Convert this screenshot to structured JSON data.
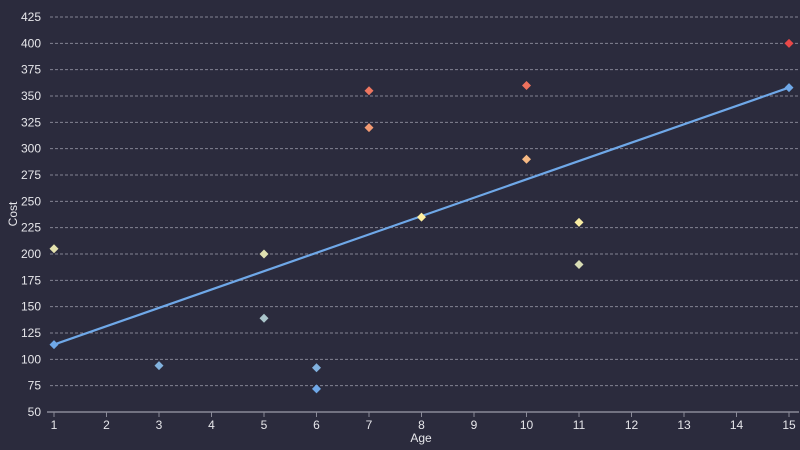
{
  "chart_data": {
    "type": "scatter",
    "title": "",
    "xlabel": "Age",
    "ylabel": "Cost",
    "xlim": [
      1,
      15
    ],
    "ylim": [
      50,
      425
    ],
    "x_ticks": [
      1,
      2,
      3,
      4,
      5,
      6,
      7,
      8,
      9,
      10,
      11,
      12,
      13,
      14,
      15
    ],
    "y_ticks": [
      50,
      75,
      100,
      125,
      150,
      175,
      200,
      225,
      250,
      275,
      300,
      325,
      350,
      375,
      400,
      425
    ],
    "grid": {
      "y": true,
      "x": false,
      "style": "dashed"
    },
    "legend": null,
    "series": [
      {
        "name": "points",
        "type": "scatter",
        "marker": "diamond",
        "points": [
          {
            "x": 1,
            "y": 205
          },
          {
            "x": 3,
            "y": 94
          },
          {
            "x": 5,
            "y": 200
          },
          {
            "x": 5,
            "y": 139
          },
          {
            "x": 6,
            "y": 92
          },
          {
            "x": 6,
            "y": 72
          },
          {
            "x": 7,
            "y": 355
          },
          {
            "x": 7,
            "y": 320
          },
          {
            "x": 8,
            "y": 235
          },
          {
            "x": 10,
            "y": 360
          },
          {
            "x": 10,
            "y": 290
          },
          {
            "x": 11,
            "y": 230
          },
          {
            "x": 11,
            "y": 190
          },
          {
            "x": 15,
            "y": 400
          }
        ]
      },
      {
        "name": "trend line",
        "type": "line",
        "color": "#6fa8e8",
        "points": [
          {
            "x": 1,
            "y": 114
          },
          {
            "x": 15,
            "y": 358
          }
        ]
      }
    ]
  },
  "colors": {
    "background": "#2b2b3d",
    "grid": "#9a9aa8",
    "axis": "#8a8a98",
    "text": "#e6e6ea",
    "trend": "#6fa8e8",
    "scale_low": "#6fa8e8",
    "scale_mid": "#fff0a0",
    "scale_high": "#e84848"
  }
}
